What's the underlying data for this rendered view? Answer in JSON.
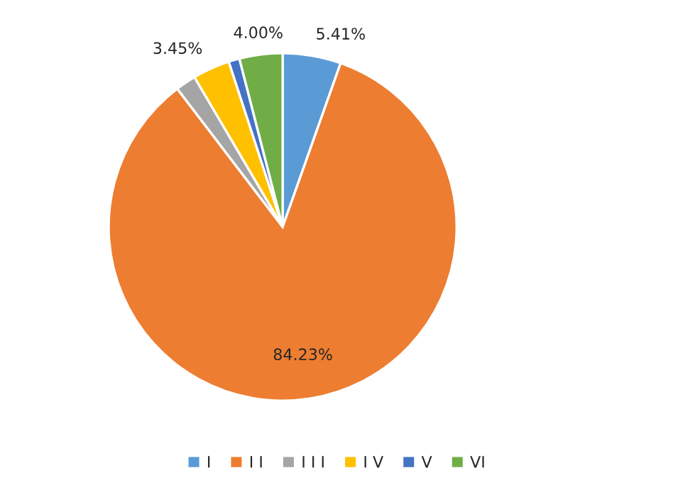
{
  "chart_data": {
    "type": "pie",
    "categories": [
      "I",
      "I I",
      "I I I",
      "I V",
      "V",
      "VI"
    ],
    "values": [
      5.41,
      84.23,
      1.9,
      3.45,
      1.01,
      4.0
    ],
    "colors": [
      "#5b9bd5",
      "#ed7d31",
      "#a5a5a5",
      "#ffc000",
      "#4472c4",
      "#70ad47"
    ],
    "value_labels": [
      "5.41%",
      "84.23%",
      null,
      "3.45%",
      null,
      "4.00%"
    ],
    "legend": "bottom"
  }
}
